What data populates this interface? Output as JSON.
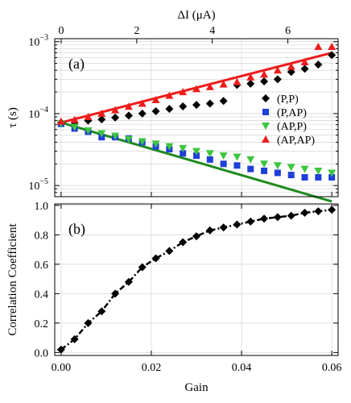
{
  "chart_data": [
    {
      "panel": "top",
      "type": "scatter",
      "panel_label": "(a)",
      "ylabel": "τ (s)",
      "yscale": "log",
      "ylim": [
        7e-06,
        0.0011
      ],
      "yticks": [
        {
          "value": 1e-05,
          "label": "10",
          "exp": "−5"
        },
        {
          "value": 0.0001,
          "label": "10",
          "exp": "−4"
        },
        {
          "value": 0.001,
          "label": "10",
          "exp": "−3"
        }
      ],
      "xlabel_top": "ΔI (μA)",
      "x_top_lim": [
        -0.17,
        7.33
      ],
      "x_top_ticks": [
        0,
        2,
        4,
        6
      ],
      "x_lim": [
        -0.0014,
        0.0614
      ],
      "grid": true,
      "legend_position": "right",
      "series": [
        {
          "name": "(P,P)",
          "marker": "diamond",
          "color": "#000000",
          "x": [
            0.0,
            0.003,
            0.006,
            0.009,
            0.012,
            0.015,
            0.018,
            0.021,
            0.024,
            0.027,
            0.03,
            0.033,
            0.036,
            0.039,
            0.042,
            0.045,
            0.048,
            0.051,
            0.054,
            0.057,
            0.06
          ],
          "values": [
            7.5e-05,
            7.5e-05,
            8e-05,
            8.3e-05,
            8.8e-05,
            9.4e-05,
            0.0001,
            0.000108,
            0.000116,
            0.000126,
            0.000132,
            0.000138,
            0.00015,
            0.00025,
            0.00026,
            0.00028,
            0.0003,
            0.00038,
            0.00042,
            0.00048,
            0.00065
          ]
        },
        {
          "name": "(P,AP)",
          "marker": "square",
          "color": "#1f3fd8",
          "x": [
            0.0,
            0.003,
            0.006,
            0.009,
            0.012,
            0.015,
            0.018,
            0.021,
            0.024,
            0.027,
            0.03,
            0.033,
            0.036,
            0.039,
            0.042,
            0.045,
            0.048,
            0.051,
            0.054,
            0.057,
            0.06
          ],
          "values": [
            7.2e-05,
            6.2e-05,
            5.6e-05,
            4.7e-05,
            4.7e-05,
            4.5e-05,
            4e-05,
            3.5e-05,
            3.2e-05,
            2.8e-05,
            2.6e-05,
            2.3e-05,
            2e-05,
            1.9e-05,
            1.7e-05,
            1.6e-05,
            1.5e-05,
            1.4e-05,
            1.3e-05,
            1.3e-05,
            1.3e-05
          ]
        },
        {
          "name": "(AP,P)",
          "marker": "triangle-down",
          "color": "#3fc43f",
          "x": [
            0.0,
            0.003,
            0.006,
            0.009,
            0.012,
            0.015,
            0.018,
            0.021,
            0.024,
            0.027,
            0.03,
            0.033,
            0.036,
            0.039,
            0.042,
            0.045,
            0.048,
            0.051,
            0.054,
            0.057,
            0.06
          ],
          "values": [
            7.3e-05,
            6.5e-05,
            5.8e-05,
            5.3e-05,
            4.9e-05,
            4.4e-05,
            4.1e-05,
            3.8e-05,
            3.5e-05,
            3.3e-05,
            3e-05,
            2.8e-05,
            2.6e-05,
            2.5e-05,
            2.3e-05,
            2e-05,
            1.9e-05,
            1.8e-05,
            1.7e-05,
            1.6e-05,
            1.5e-05
          ]
        },
        {
          "name": "(AP,AP)",
          "marker": "triangle-up",
          "color": "#ee1d1d",
          "x": [
            0.0,
            0.003,
            0.006,
            0.009,
            0.012,
            0.015,
            0.018,
            0.021,
            0.024,
            0.027,
            0.03,
            0.033,
            0.036,
            0.039,
            0.042,
            0.045,
            0.048,
            0.051,
            0.054,
            0.057,
            0.06
          ],
          "values": [
            7.8e-05,
            8.2e-05,
            9e-05,
            0.0001,
            0.000112,
            0.000125,
            0.000138,
            0.000155,
            0.000178,
            0.0002,
            0.00022,
            0.000235,
            0.000255,
            0.000275,
            0.00032,
            0.00035,
            0.0004,
            0.00045,
            0.00052,
            0.00085,
            0.00085
          ]
        }
      ],
      "fit_lines": [
        {
          "color": "#ee1d1d",
          "x": [
            0.0,
            0.06
          ],
          "values": [
            7.5e-05,
            0.0007
          ]
        },
        {
          "color": "#1f8a1f",
          "x": [
            0.0,
            0.06
          ],
          "values": [
            7.5e-05,
            6e-06
          ]
        }
      ]
    },
    {
      "panel": "bottom",
      "type": "line",
      "panel_label": "(b)",
      "xlabel": "Gain",
      "ylabel": "Correlation Coefficient",
      "xlim": [
        -0.0014,
        0.0614
      ],
      "ylim": [
        -0.02,
        1.01
      ],
      "xticks": [
        {
          "value": 0.0,
          "label": "0.00"
        },
        {
          "value": 0.02,
          "label": "0.02"
        },
        {
          "value": 0.04,
          "label": "0.04"
        },
        {
          "value": 0.06,
          "label": "0.06"
        }
      ],
      "yticks": [
        {
          "value": 0.0,
          "label": "0.0"
        },
        {
          "value": 0.2,
          "label": "0.2"
        },
        {
          "value": 0.4,
          "label": "0.4"
        },
        {
          "value": 0.6,
          "label": "0.6"
        },
        {
          "value": 0.8,
          "label": "0.8"
        },
        {
          "value": 1.0,
          "label": "1.0"
        }
      ],
      "grid": true,
      "series": [
        {
          "marker": "diamond",
          "line_style": "dash-dot",
          "color": "#000000",
          "x": [
            0.0,
            0.003,
            0.006,
            0.009,
            0.012,
            0.015,
            0.018,
            0.021,
            0.024,
            0.027,
            0.03,
            0.033,
            0.036,
            0.039,
            0.042,
            0.045,
            0.048,
            0.051,
            0.054,
            0.057,
            0.06
          ],
          "values": [
            0.02,
            0.09,
            0.2,
            0.28,
            0.4,
            0.48,
            0.58,
            0.64,
            0.69,
            0.75,
            0.79,
            0.83,
            0.85,
            0.87,
            0.89,
            0.91,
            0.92,
            0.93,
            0.95,
            0.96,
            0.97
          ]
        }
      ]
    }
  ]
}
